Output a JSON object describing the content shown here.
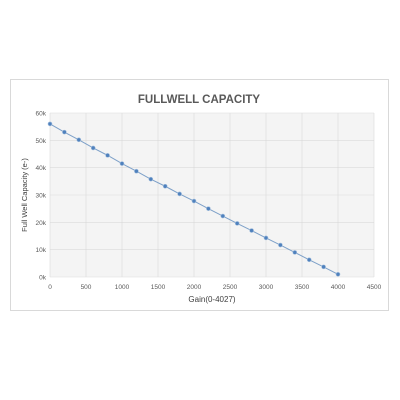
{
  "chart_data": {
    "type": "scatter",
    "title": "FULLWELL CAPACITY",
    "xlabel": "Gain(0-4027)",
    "ylabel": "Full Well Capacity (e-)",
    "xlim": [
      0,
      4500
    ],
    "ylim": [
      0,
      60000
    ],
    "x_ticks": [
      "0",
      "500",
      "1000",
      "1500",
      "2000",
      "2500",
      "3000",
      "3500",
      "4000",
      "4500"
    ],
    "y_ticks": [
      "0k",
      "10k",
      "20k",
      "30k",
      "40k",
      "50k",
      "60k"
    ],
    "grid": true,
    "legend": "none",
    "series": [
      {
        "color": "#7da0c8",
        "marker_color": "#4f81bd",
        "x": [
          0,
          200,
          400,
          600,
          800,
          1000,
          1200,
          1400,
          1600,
          1800,
          2000,
          2200,
          2400,
          2600,
          2800,
          3000,
          3200,
          3400,
          3600,
          3800,
          4000
        ],
        "values": [
          56000,
          53000,
          50200,
          47200,
          44500,
          41500,
          38700,
          35800,
          33200,
          30400,
          27800,
          25000,
          22300,
          19600,
          17000,
          14300,
          11700,
          9000,
          6300,
          3700,
          1000
        ]
      }
    ]
  }
}
